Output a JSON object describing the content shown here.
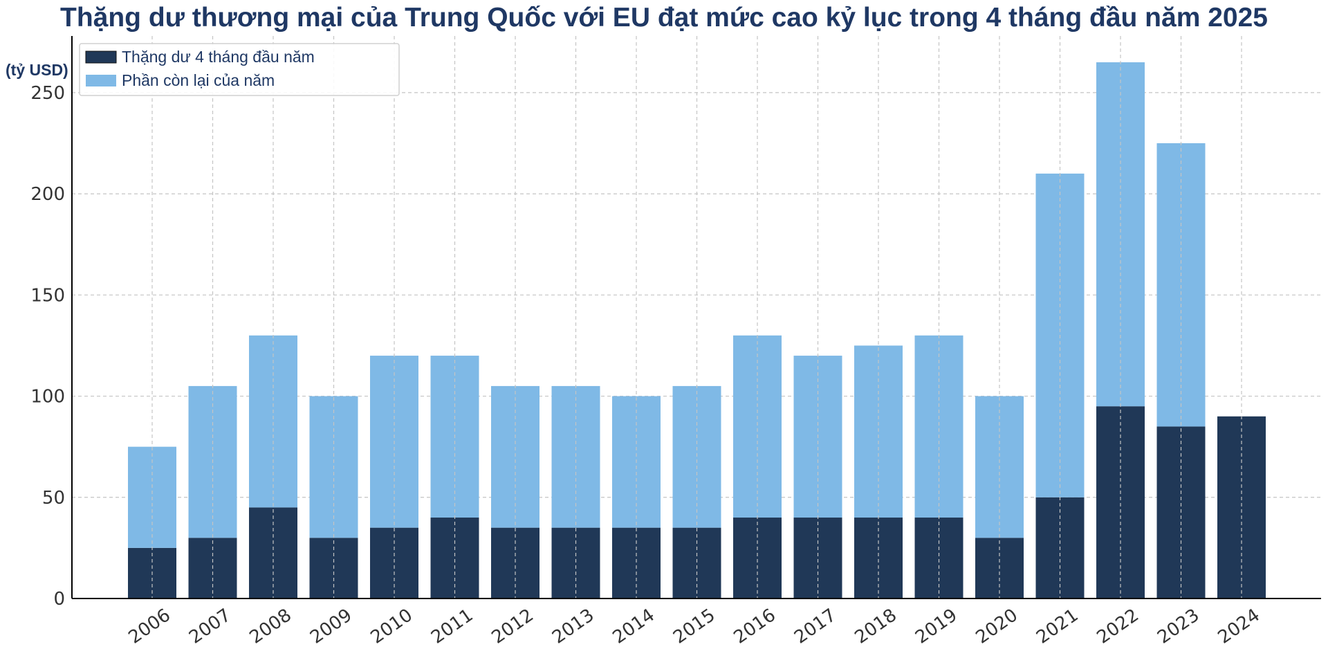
{
  "chart_data": {
    "type": "bar",
    "stacked": true,
    "title": "Thặng dư thương mại của Trung Quốc với EU đạt mức cao kỷ lục trong 4 tháng đầu năm 2025",
    "ylabel": "(tỷ USD)",
    "xlabel": "",
    "ylim": [
      0,
      278
    ],
    "yticks": [
      0,
      50,
      100,
      150,
      200,
      250
    ],
    "grid": true,
    "legend_position": "top-left",
    "categories": [
      "2006",
      "2007",
      "2008",
      "2009",
      "2010",
      "2011",
      "2012",
      "2013",
      "2014",
      "2015",
      "2016",
      "2017",
      "2018",
      "2019",
      "2020",
      "2021",
      "2022",
      "2023",
      "2024"
    ],
    "series": [
      {
        "name": "Thặng dư 4 tháng đầu năm",
        "color": "#203857",
        "values": [
          25,
          30,
          45,
          30,
          35,
          40,
          35,
          35,
          35,
          35,
          40,
          40,
          40,
          40,
          30,
          50,
          95,
          85,
          90
        ]
      },
      {
        "name": "Phần còn lại của năm",
        "color": "#7fb9e6",
        "values": [
          50,
          75,
          85,
          70,
          85,
          80,
          70,
          70,
          65,
          70,
          90,
          80,
          85,
          90,
          70,
          160,
          170,
          140,
          0
        ]
      }
    ]
  }
}
